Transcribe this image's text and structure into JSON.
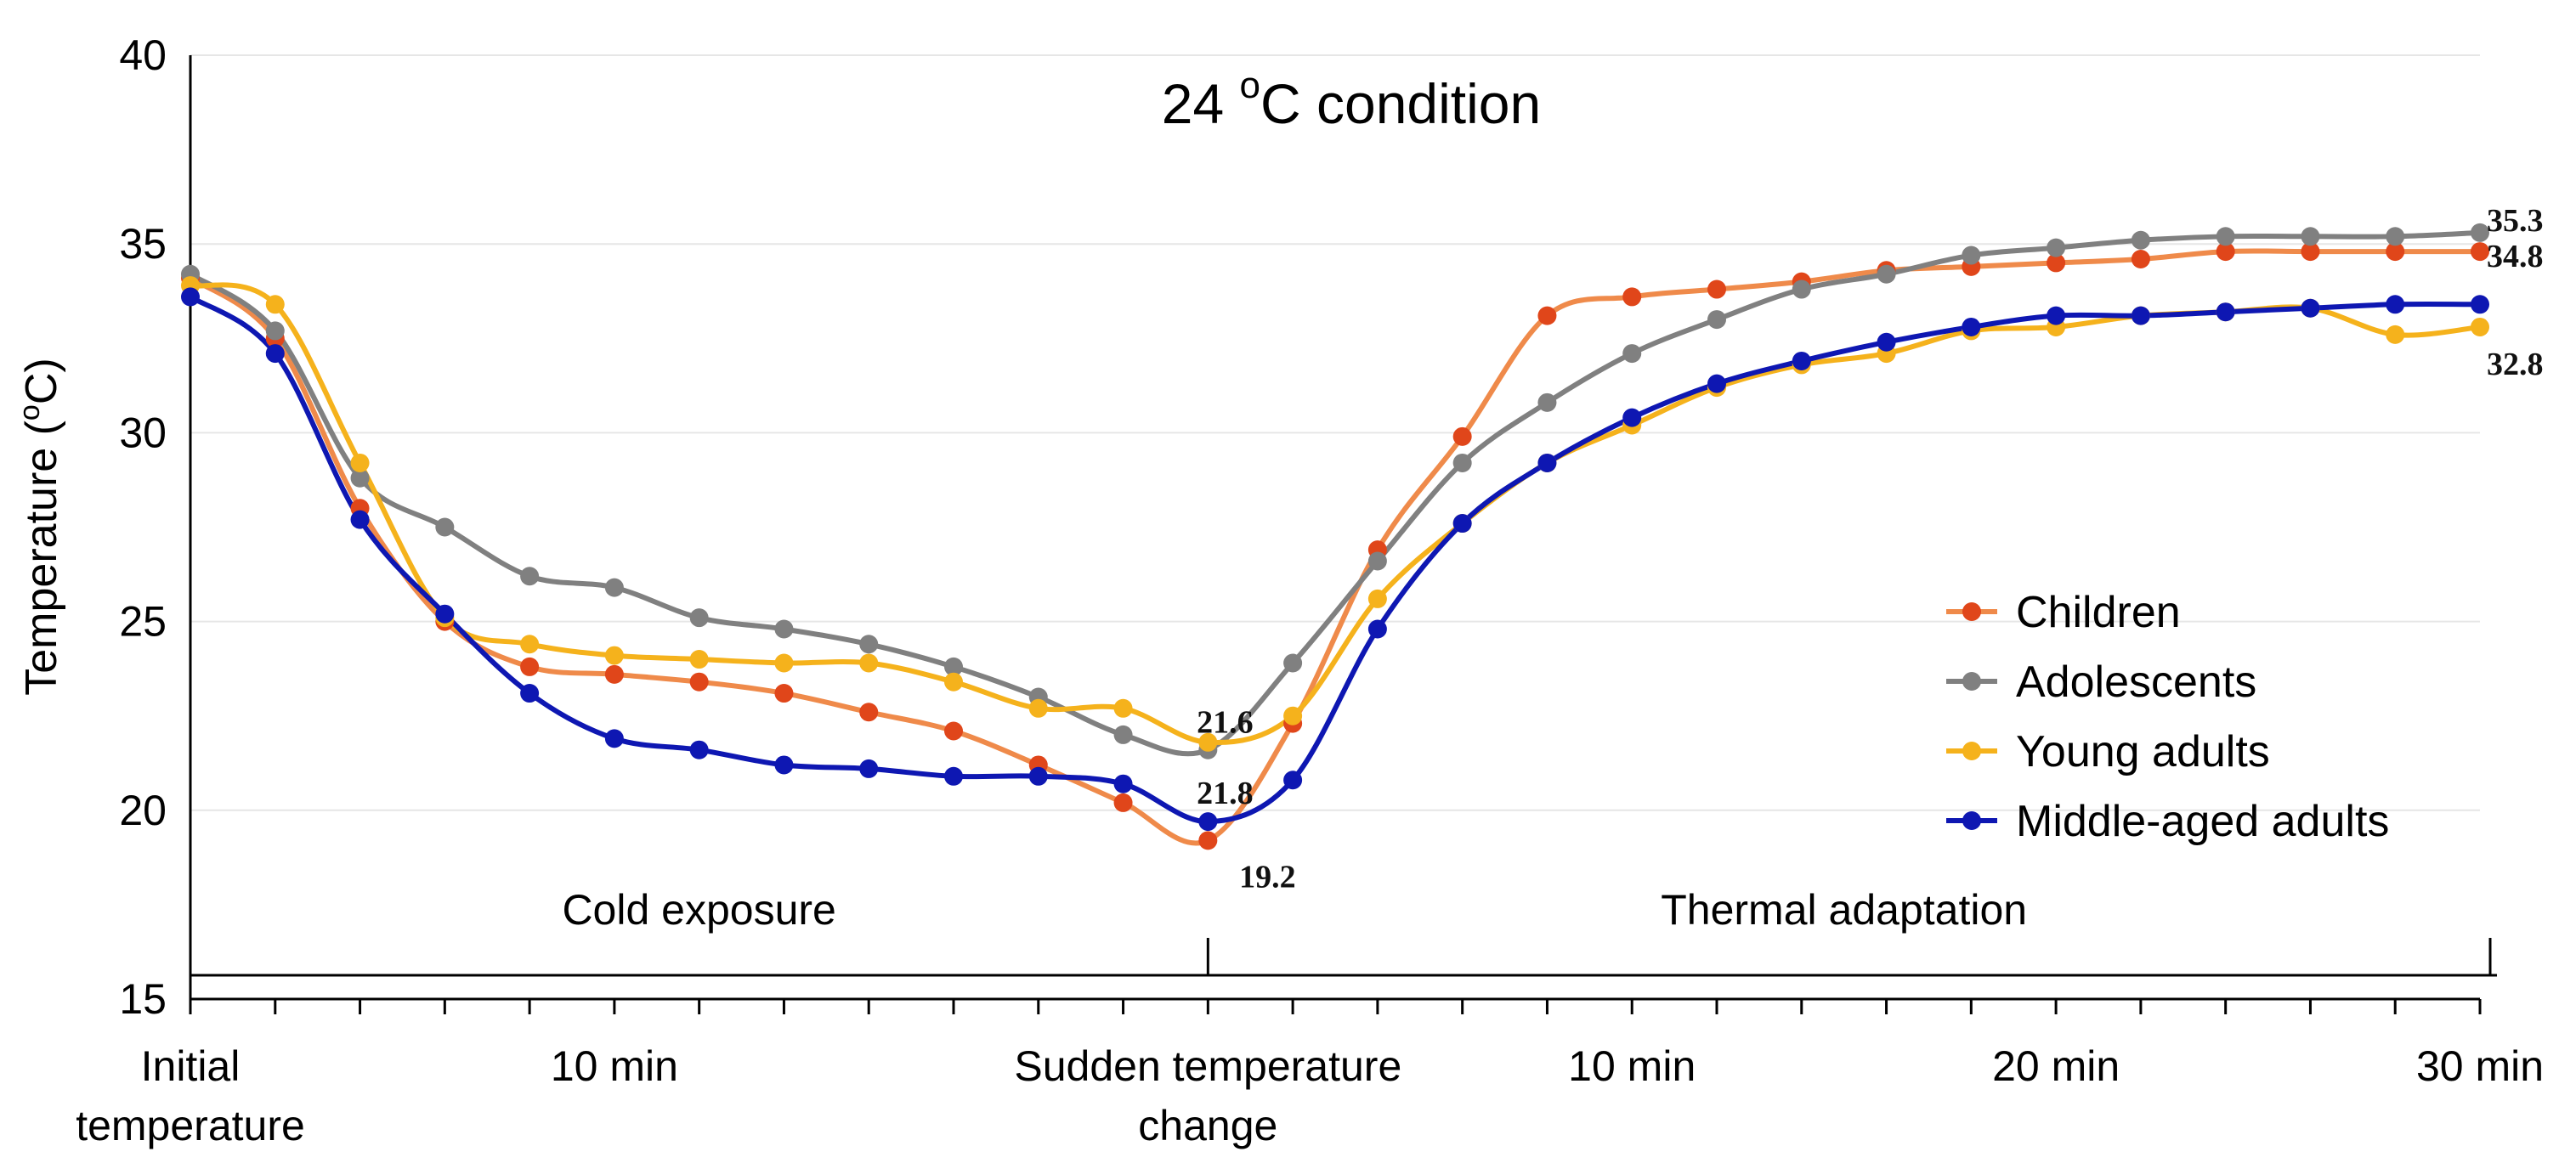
{
  "chart_data": {
    "type": "line",
    "title": "24 °C condition",
    "title_parts": {
      "prefix": "24 ",
      "superscript": "o",
      "suffix": "C condition"
    },
    "ylabel": "Temperature (°C)",
    "ylabel_parts": {
      "prefix": "Temperature (",
      "superscript": "o",
      "suffix": "C)"
    },
    "xlabel": "",
    "ylim": [
      15,
      40
    ],
    "yticks": [
      "15",
      "20",
      "25",
      "30",
      "35",
      "40"
    ],
    "grid": "horizontal",
    "legend_position": "right",
    "x": [
      0,
      1,
      2,
      3,
      4,
      5,
      6,
      7,
      8,
      9,
      10,
      11,
      12,
      13,
      14,
      15,
      16,
      17,
      18,
      19,
      20,
      21,
      22,
      23,
      24,
      25,
      26,
      27
    ],
    "x_tick_labels": [
      {
        "x": 0,
        "lines": [
          "Initial",
          "temperature"
        ]
      },
      {
        "x": 5,
        "lines": [
          "10 min"
        ]
      },
      {
        "x": 12,
        "lines": [
          "Sudden temperature",
          "change"
        ]
      },
      {
        "x": 17,
        "lines": [
          "10 min"
        ]
      },
      {
        "x": 22,
        "lines": [
          "20 min"
        ]
      },
      {
        "x": 27,
        "lines": [
          "30 min"
        ]
      }
    ],
    "phases": [
      {
        "label": "Cold exposure",
        "from": 0,
        "to": 12
      },
      {
        "label": "Thermal adaptation",
        "from": 12,
        "to": 27
      }
    ],
    "series": [
      {
        "name": "Children",
        "color": "#e0461a",
        "line_color": "#ef8a4a",
        "values": [
          34.1,
          32.5,
          28.0,
          25.0,
          23.8,
          23.6,
          23.4,
          23.1,
          22.6,
          22.1,
          21.2,
          20.2,
          19.2,
          22.3,
          26.9,
          29.9,
          33.1,
          33.6,
          33.8,
          34.0,
          34.3,
          34.4,
          34.5,
          34.6,
          34.8,
          34.8,
          34.8,
          34.8
        ]
      },
      {
        "name": "Adolescents",
        "color": "#808080",
        "line_color": "#808080",
        "values": [
          34.2,
          32.7,
          28.8,
          27.5,
          26.2,
          25.9,
          25.1,
          24.8,
          24.4,
          23.8,
          23.0,
          22.0,
          21.6,
          23.9,
          26.6,
          29.2,
          30.8,
          32.1,
          33.0,
          33.8,
          34.2,
          34.7,
          34.9,
          35.1,
          35.2,
          35.2,
          35.2,
          35.3
        ]
      },
      {
        "name": "Young adults",
        "color": "#f5b21c",
        "line_color": "#f5b21c",
        "values": [
          33.9,
          33.4,
          29.2,
          25.1,
          24.4,
          24.1,
          24.0,
          23.9,
          23.9,
          23.4,
          22.7,
          22.7,
          21.8,
          22.5,
          25.6,
          27.6,
          29.2,
          30.2,
          31.2,
          31.8,
          32.1,
          32.7,
          32.8,
          33.1,
          33.2,
          33.3,
          32.6,
          32.8
        ]
      },
      {
        "name": "Middle-aged adults",
        "color": "#0e17b2",
        "line_color": "#0e17b2",
        "values": [
          33.6,
          32.1,
          27.7,
          25.2,
          23.1,
          21.9,
          21.6,
          21.2,
          21.1,
          20.9,
          20.9,
          20.7,
          19.7,
          20.8,
          24.8,
          27.6,
          29.2,
          30.4,
          31.3,
          31.9,
          32.4,
          32.8,
          33.1,
          33.1,
          33.2,
          33.3,
          33.4,
          33.4
        ]
      }
    ],
    "annotations": [
      {
        "text": "21.6",
        "x": 12,
        "y": 21.6
      },
      {
        "text": "21.8",
        "x": 12,
        "y": 21.8
      },
      {
        "text": "19.2",
        "x": 12,
        "y": 19.2
      },
      {
        "text": "35.3",
        "x": 27,
        "y": 35.3
      },
      {
        "text": "34.8",
        "x": 27,
        "y": 34.8
      },
      {
        "text": "32.8",
        "x": 27,
        "y": 32.8
      }
    ]
  }
}
